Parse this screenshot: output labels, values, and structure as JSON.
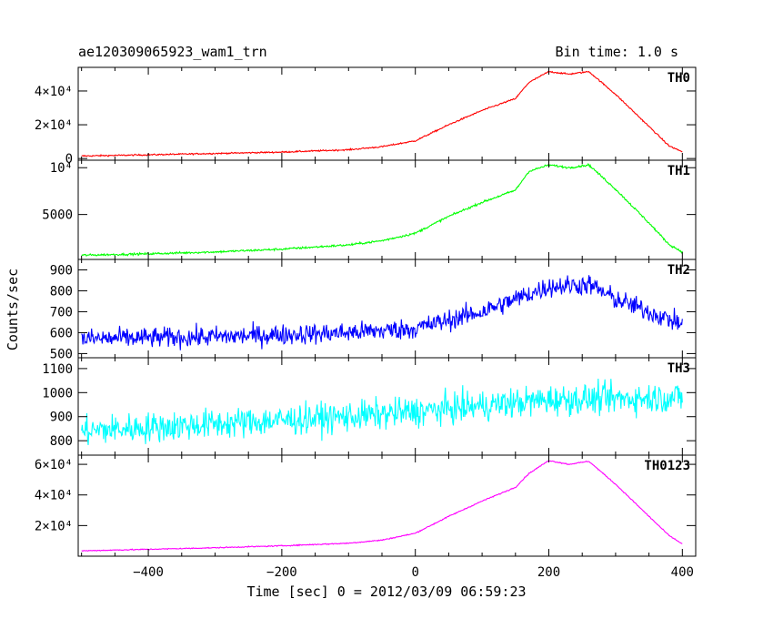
{
  "header": {
    "title": "ae120309065923_wam1_trn",
    "bin_time": "Bin time: 1.0 s"
  },
  "axes": {
    "xlabel": "Time [sec] 0 = 2012/03/09 06:59:23",
    "ylabel": "Counts/sec"
  },
  "chart_data": {
    "type": "line",
    "shared_x": true,
    "xlim": [
      -505,
      420
    ],
    "x_ticks": [
      {
        "value": -400,
        "label": "−400"
      },
      {
        "value": -200,
        "label": "−200"
      },
      {
        "value": 0,
        "label": "0"
      },
      {
        "value": 200,
        "label": "200"
      },
      {
        "value": 400,
        "label": "400"
      }
    ],
    "panels": [
      {
        "name": "TH0",
        "color": "#ff0000",
        "ylim": [
          -1000,
          54000
        ],
        "yticks": [
          {
            "value": 0,
            "label": "0"
          },
          {
            "value": 20000,
            "label": "2×10⁴"
          },
          {
            "value": 40000,
            "label": "4×10⁴"
          }
        ],
        "noise": 300,
        "x": [
          -500,
          -400,
          -300,
          -200,
          -100,
          -50,
          0,
          50,
          100,
          150,
          170,
          200,
          230,
          260,
          300,
          350,
          380,
          400
        ],
        "y": [
          1500,
          2200,
          3000,
          3800,
          5200,
          7000,
          10500,
          20000,
          28500,
          35500,
          45000,
          51500,
          50000,
          51500,
          38000,
          19000,
          7500,
          4000
        ]
      },
      {
        "name": "TH1",
        "color": "#00ff00",
        "ylim": [
          200,
          10800
        ],
        "yticks": [
          {
            "value": 5000,
            "label": "5000"
          },
          {
            "value": 10000,
            "label": "10⁴"
          }
        ],
        "noise": 80,
        "x": [
          -500,
          -400,
          -300,
          -200,
          -100,
          -50,
          0,
          50,
          100,
          150,
          170,
          200,
          230,
          260,
          300,
          350,
          380,
          400
        ],
        "y": [
          650,
          800,
          1000,
          1300,
          1750,
          2200,
          3000,
          4800,
          6300,
          7600,
          9600,
          10300,
          10000,
          10300,
          7700,
          4100,
          1800,
          1000
        ]
      },
      {
        "name": "TH2",
        "color": "#0000ff",
        "ylim": [
          480,
          950
        ],
        "yticks": [
          {
            "value": 500,
            "label": "500"
          },
          {
            "value": 600,
            "label": "600"
          },
          {
            "value": 700,
            "label": "700"
          },
          {
            "value": 800,
            "label": "800"
          },
          {
            "value": 900,
            "label": "900"
          }
        ],
        "noise": 35,
        "x": [
          -500,
          -400,
          -300,
          -200,
          -100,
          0,
          50,
          100,
          150,
          200,
          260,
          300,
          350,
          400
        ],
        "y": [
          570,
          575,
          580,
          590,
          600,
          620,
          660,
          700,
          760,
          820,
          830,
          760,
          700,
          640
        ]
      },
      {
        "name": "TH3",
        "color": "#00ffff",
        "ylim": [
          740,
          1145
        ],
        "yticks": [
          {
            "value": 800,
            "label": "800"
          },
          {
            "value": 900,
            "label": "900"
          },
          {
            "value": 1000,
            "label": "1000"
          },
          {
            "value": 1100,
            "label": "1100"
          }
        ],
        "noise": 45,
        "x": [
          -500,
          -400,
          -300,
          -200,
          -100,
          0,
          100,
          200,
          300,
          400
        ],
        "y": [
          840,
          855,
          870,
          885,
          900,
          920,
          945,
          970,
          975,
          980
        ]
      },
      {
        "name": "TH0123",
        "color": "#ff00ff",
        "ylim": [
          0,
          66000
        ],
        "yticks": [
          {
            "value": 20000,
            "label": "2×10⁴"
          },
          {
            "value": 40000,
            "label": "4×10⁴"
          },
          {
            "value": 60000,
            "label": "6×10⁴"
          }
        ],
        "noise": 250,
        "x": [
          -500,
          -400,
          -300,
          -200,
          -100,
          -50,
          0,
          50,
          100,
          150,
          170,
          200,
          230,
          260,
          300,
          350,
          380,
          400
        ],
        "y": [
          3500,
          4500,
          5500,
          6800,
          8500,
          10500,
          15000,
          26000,
          36000,
          45000,
          54000,
          62500,
          60000,
          62000,
          47000,
          26000,
          13500,
          8000
        ]
      }
    ]
  }
}
